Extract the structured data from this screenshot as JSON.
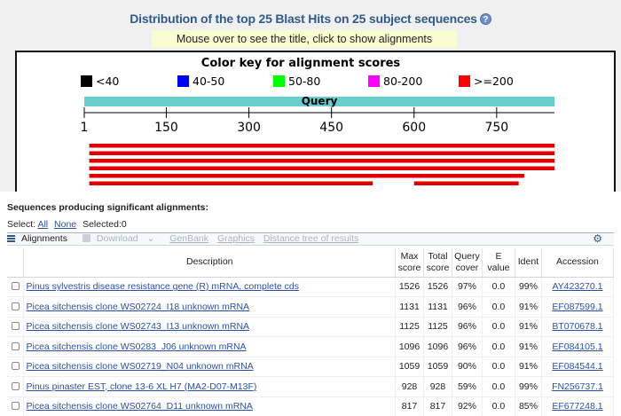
{
  "header": {
    "title": "Distribution of the top 25 Blast Hits on 25 subject sequences",
    "help_icon": "question-icon",
    "mouse_hint": "Mouse over to see the title, click to show alignments"
  },
  "graphic": {
    "color_key_title": "Color key for alignment scores",
    "color_key": [
      {
        "label": "<40",
        "color": "#000000"
      },
      {
        "label": "40-50",
        "color": "#0000ff"
      },
      {
        "label": "50-80",
        "color": "#00ff00"
      },
      {
        "label": "80-200",
        "color": "#ff00ff"
      },
      {
        "label": ">=200",
        "color": "#ff0000"
      }
    ],
    "query_label": "Query",
    "query_color": "#66cccc",
    "ticks": [
      "1",
      "150",
      "300",
      "450",
      "600",
      "750"
    ],
    "tick_values": [
      1,
      150,
      300,
      450,
      600,
      750
    ],
    "query_length": 855,
    "hits": [
      {
        "segments": [
          [
            10,
            855
          ]
        ]
      },
      {
        "segments": [
          [
            10,
            855
          ]
        ]
      },
      {
        "segments": [
          [
            10,
            855
          ]
        ]
      },
      {
        "segments": [
          [
            10,
            855
          ]
        ]
      },
      {
        "segments": [
          [
            10,
            800
          ]
        ]
      },
      {
        "segments": [
          [
            10,
            525
          ],
          [
            600,
            790
          ]
        ]
      }
    ]
  },
  "results": {
    "section_title": "Sequences producing significant alignments:",
    "select_label": "Select:",
    "select_all": "All",
    "select_none": "None",
    "selected_text": "Selected:0",
    "toolbar": {
      "alignments": "Alignments",
      "download": "Download",
      "download_caret": "⌄",
      "genbank": "GenBank",
      "graphics": "Graphics",
      "distance_tree": "Distance tree of results",
      "gear_icon": "gear-icon"
    },
    "columns": [
      "Description",
      "Max score",
      "Total score",
      "Query cover",
      "E value",
      "Ident",
      "Accession"
    ],
    "column_lines": [
      [
        "Description"
      ],
      [
        "Max",
        "score"
      ],
      [
        "Total",
        "score"
      ],
      [
        "Query",
        "cover"
      ],
      [
        "E",
        "value"
      ],
      [
        "Ident"
      ],
      [
        "Accession"
      ]
    ],
    "rows": [
      {
        "description": "Pinus sylvestris disease resistance gene (R) mRNA, complete cds",
        "max_score": "1526",
        "total_score": "1526",
        "query_cover": "97%",
        "e_value": "0.0",
        "ident": "99%",
        "accession": "AY423270.1"
      },
      {
        "description": "Picea sitchensis clone WS02724_I18 unknown mRNA",
        "max_score": "1131",
        "total_score": "1131",
        "query_cover": "96%",
        "e_value": "0.0",
        "ident": "91%",
        "accession": "EF087599.1"
      },
      {
        "description": "Picea sitchensis clone WS02743_I13 unknown mRNA",
        "max_score": "1125",
        "total_score": "1125",
        "query_cover": "96%",
        "e_value": "0.0",
        "ident": "91%",
        "accession": "BT070678.1"
      },
      {
        "description": "Picea sitchensis clone WS0283_J06 unknown mRNA",
        "max_score": "1096",
        "total_score": "1096",
        "query_cover": "96%",
        "e_value": "0.0",
        "ident": "91%",
        "accession": "EF084105.1"
      },
      {
        "description": "Picea sitchensis clone WS02719_N04 unknown mRNA",
        "max_score": "1059",
        "total_score": "1059",
        "query_cover": "90%",
        "e_value": "0.0",
        "ident": "91%",
        "accession": "EF084544.1"
      },
      {
        "description": "Pinus pinaster EST, clone 13-6 XL H7 (MA2-D07-M13F)",
        "max_score": "928",
        "total_score": "928",
        "query_cover": "59%",
        "e_value": "0.0",
        "ident": "99%",
        "accession": "FN256737.1"
      },
      {
        "description": "Picea sitchensis clone WS02764_D11 unknown mRNA",
        "max_score": "817",
        "total_score": "817",
        "query_cover": "92%",
        "e_value": "0.0",
        "ident": "85%",
        "accession": "EF677248.1"
      }
    ]
  }
}
